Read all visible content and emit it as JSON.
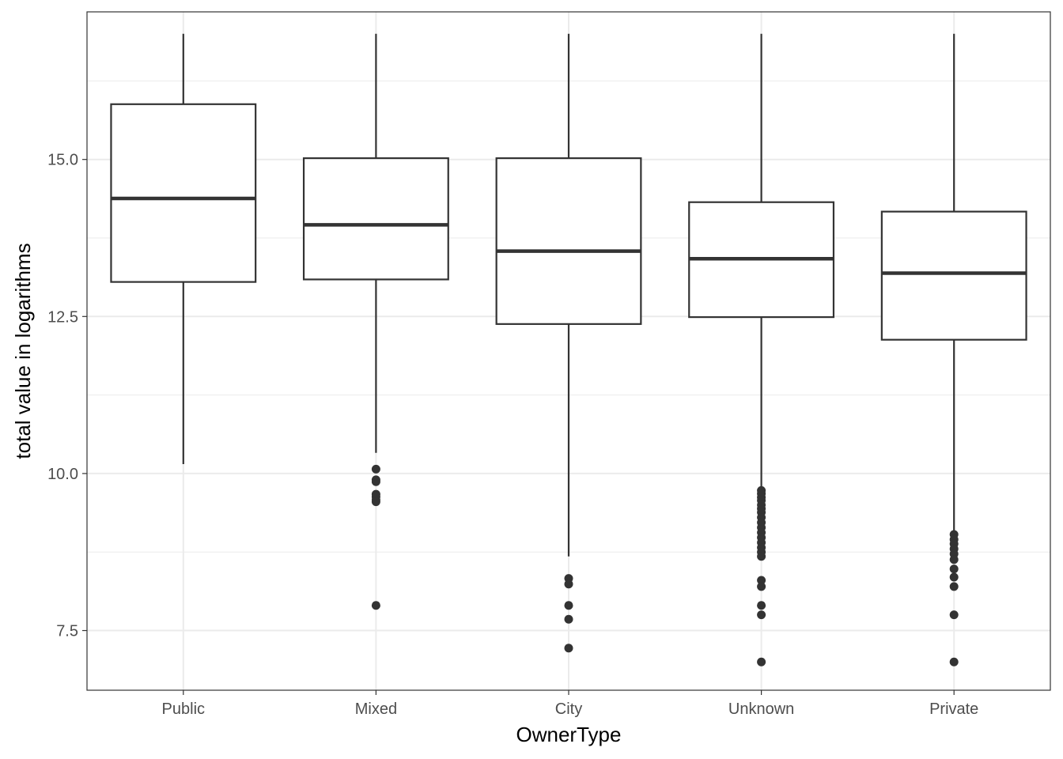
{
  "chart_data": {
    "type": "boxplot",
    "title": "",
    "xlabel": "OwnerType",
    "ylabel": "total value in logarithms",
    "ylim": [
      6.55,
      17.35
    ],
    "y_major_ticks": [
      7.5,
      10.0,
      12.5,
      15.0
    ],
    "y_tick_labels": [
      "7.5",
      "10.0",
      "12.5",
      "15.0"
    ],
    "y_minor_ticks": [
      8.75,
      11.25,
      13.75,
      16.25
    ],
    "grid": true,
    "legend": "none",
    "colors": {
      "line": "#333333",
      "grid": "#ebebeb",
      "fill": "#ffffff"
    },
    "categories": [
      "Public",
      "Mixed",
      "City",
      "Unknown",
      "Private"
    ],
    "boxes": [
      {
        "category": "Public",
        "whisker_low": 10.15,
        "q1": 13.05,
        "median": 14.38,
        "q3": 15.88,
        "whisker_high": 17.0,
        "outliers": []
      },
      {
        "category": "Mixed",
        "whisker_low": 10.33,
        "q1": 13.09,
        "median": 13.96,
        "q3": 15.02,
        "whisker_high": 17.0,
        "outliers": [
          10.07,
          9.9,
          9.87,
          9.67,
          9.63,
          9.58,
          9.55,
          7.9
        ]
      },
      {
        "category": "City",
        "whisker_low": 8.68,
        "q1": 12.38,
        "median": 13.54,
        "q3": 15.02,
        "whisker_high": 17.0,
        "outliers": [
          8.33,
          8.24,
          7.9,
          7.68,
          7.22
        ]
      },
      {
        "category": "Unknown",
        "whisker_low": 9.77,
        "q1": 12.49,
        "median": 13.42,
        "q3": 14.32,
        "whisker_high": 17.0,
        "outliers": [
          9.73,
          9.68,
          9.62,
          9.57,
          9.5,
          9.44,
          9.38,
          9.3,
          9.22,
          9.14,
          9.06,
          8.98,
          8.9,
          8.82,
          8.75,
          8.68,
          8.3,
          8.2,
          7.9,
          7.75,
          7.0
        ]
      },
      {
        "category": "Private",
        "whisker_low": 9.08,
        "q1": 12.13,
        "median": 13.19,
        "q3": 14.17,
        "whisker_high": 17.0,
        "outliers": [
          9.03,
          8.95,
          8.88,
          8.8,
          8.72,
          8.63,
          8.48,
          8.35,
          8.2,
          7.75,
          7.0
        ]
      }
    ]
  }
}
